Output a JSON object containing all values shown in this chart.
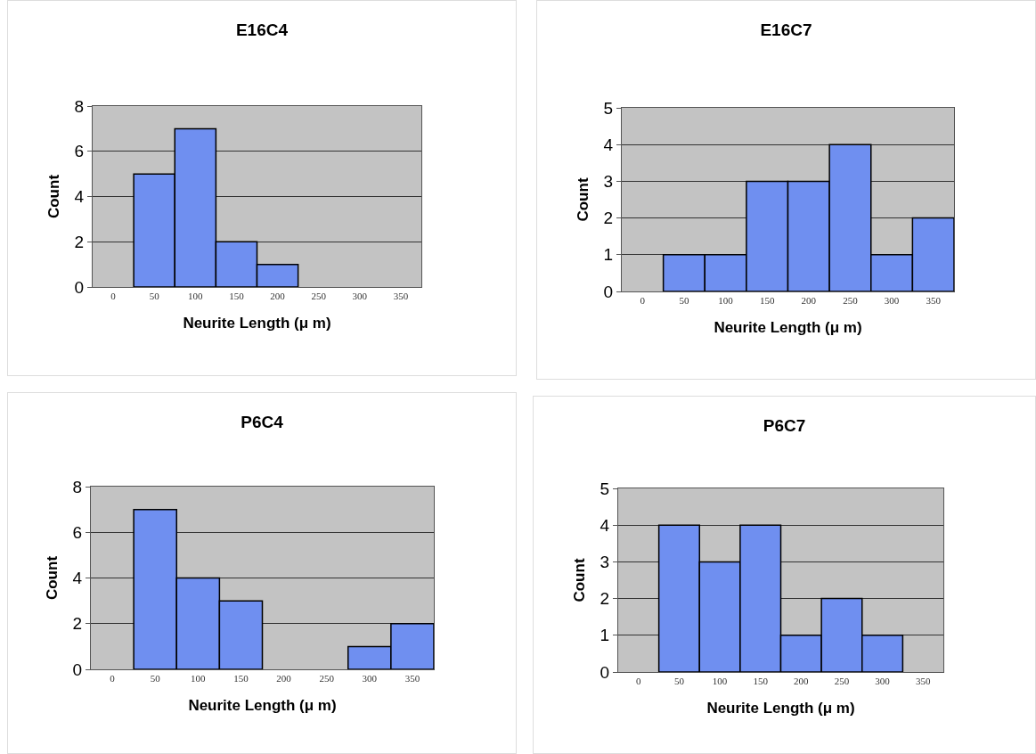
{
  "chart_data": [
    {
      "type": "bar",
      "title": "E16C4",
      "xlabel": "Neurite Length (μ m)",
      "ylabel": "Count",
      "categories": [
        "0",
        "50",
        "100",
        "150",
        "200",
        "250",
        "300",
        "350"
      ],
      "values": [
        0,
        5,
        7,
        2,
        1,
        0,
        0,
        0
      ],
      "color": "#6f8ff0",
      "ylim": [
        0,
        8
      ],
      "yticks": [
        0,
        2,
        4,
        6,
        8
      ],
      "grid": "y"
    },
    {
      "type": "bar",
      "title": "E16C7",
      "xlabel": "Neurite Length (μ m)",
      "ylabel": "Count",
      "categories": [
        "0",
        "50",
        "100",
        "150",
        "200",
        "250",
        "300",
        "350"
      ],
      "values": [
        0,
        1,
        1,
        3,
        3,
        4,
        1,
        2
      ],
      "color": "#6f8ff0",
      "ylim": [
        0,
        5
      ],
      "yticks": [
        0,
        1,
        2,
        3,
        4,
        5
      ],
      "grid": "y"
    },
    {
      "type": "bar",
      "title": "P6C4",
      "xlabel": "Neurite Length (μ m)",
      "ylabel": "Count",
      "categories": [
        "0",
        "50",
        "100",
        "150",
        "200",
        "250",
        "300",
        "350"
      ],
      "values": [
        0,
        7,
        4,
        3,
        0,
        0,
        1,
        2
      ],
      "color": "#6f8ff0",
      "ylim": [
        0,
        8
      ],
      "yticks": [
        0,
        2,
        4,
        6,
        8
      ],
      "grid": "y"
    },
    {
      "type": "bar",
      "title": "P6C7",
      "xlabel": "Neurite Length (μ m)",
      "ylabel": "Count",
      "categories": [
        "0",
        "50",
        "100",
        "150",
        "200",
        "250",
        "300",
        "350"
      ],
      "values": [
        0,
        4,
        3,
        4,
        1,
        2,
        1,
        0
      ],
      "color": "#6f8ff0",
      "ylim": [
        0,
        5
      ],
      "yticks": [
        0,
        1,
        2,
        3,
        4,
        5
      ],
      "grid": "y"
    }
  ]
}
